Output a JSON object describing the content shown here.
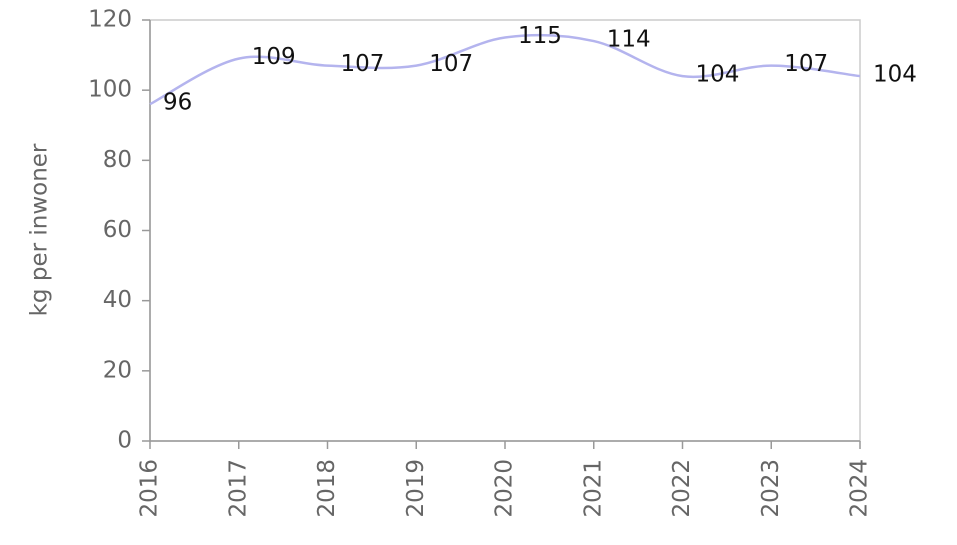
{
  "chart_data": {
    "type": "line",
    "y_label": "kg per inwoner",
    "x": [
      2016,
      2017,
      2018,
      2019,
      2020,
      2021,
      2022,
      2023,
      2024
    ],
    "values": [
      96,
      109,
      107,
      107,
      115,
      114,
      104,
      107,
      104
    ],
    "color": "#b4b4ee",
    "xlim": [
      2016,
      2024
    ],
    "xticks": [
      2016,
      2017,
      2018,
      2019,
      2020,
      2021,
      2022,
      2023,
      2024
    ],
    "ylim": [
      0,
      120
    ],
    "yticks": [
      0,
      20,
      40,
      60,
      80,
      100,
      120
    ]
  }
}
